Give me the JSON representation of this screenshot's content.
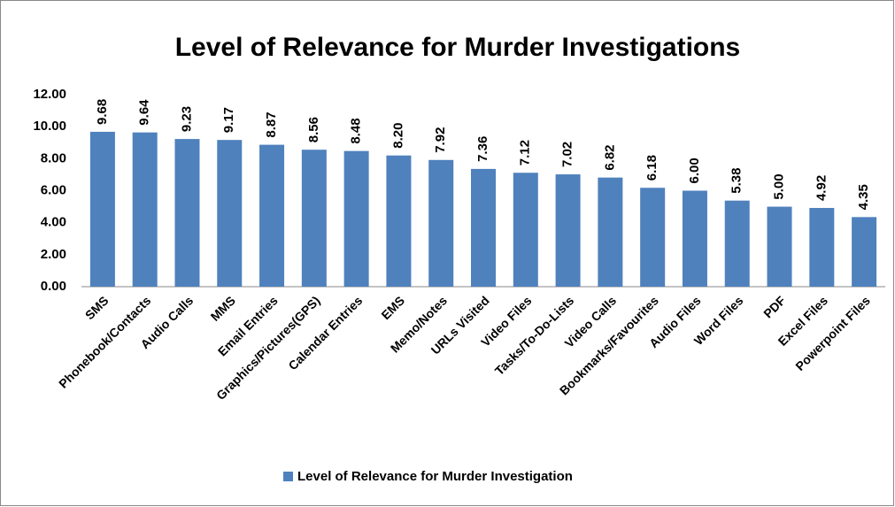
{
  "chart_data": {
    "type": "bar",
    "title": "Level of Relevance for Murder Investigations",
    "categories": [
      "SMS",
      "Phonebook/Contacts",
      "Audio Calls",
      "MMS",
      "Email Entries",
      "Graphics/Pictures(GPS)",
      "Calendar Entries",
      "EMS",
      "Memo/Notes",
      "URLs Visited",
      "Video Files",
      "Tasks/To-Do-Lists",
      "Video Calls",
      "Bookmarks/Favourites",
      "Audio Files",
      "Word Files",
      "PDF",
      "Excel Files",
      "Powerpoint Files"
    ],
    "series": [
      {
        "name": "Level of Relevance for Murder Investigation",
        "color": "#4f81bd",
        "values": [
          9.68,
          9.64,
          9.23,
          9.17,
          8.87,
          8.56,
          8.48,
          8.2,
          7.92,
          7.36,
          7.12,
          7.02,
          6.82,
          6.18,
          6.0,
          5.38,
          5.0,
          4.92,
          4.35
        ],
        "value_labels": [
          "9.68",
          "9.64",
          "9.23",
          "9.17",
          "8.87",
          "8.56",
          "8.48",
          "8.20",
          "7.92",
          "7.36",
          "7.12",
          "7.02",
          "6.82",
          "6.18",
          "6.00",
          "5.38",
          "5.00",
          "4.92",
          "4.35"
        ]
      }
    ],
    "ylim": [
      0,
      12
    ],
    "yticks": [
      {
        "value": 0,
        "label": "0.00"
      },
      {
        "value": 2,
        "label": "2.00"
      },
      {
        "value": 4,
        "label": "4.00"
      },
      {
        "value": 6,
        "label": "6.00"
      },
      {
        "value": 8,
        "label": "8.00"
      },
      {
        "value": 10,
        "label": "10.00"
      },
      {
        "value": 12,
        "label": "12.00"
      }
    ],
    "grid": false,
    "legend": "bottom"
  }
}
